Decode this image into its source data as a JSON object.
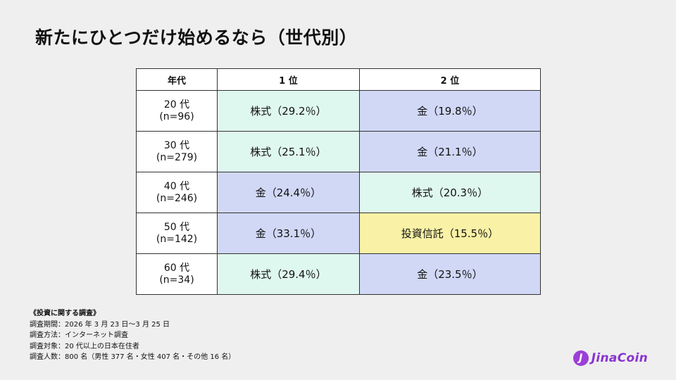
{
  "title": "新たにひとつだけ始めるなら（世代別）",
  "table": {
    "headers": [
      "年代",
      "1 位",
      "2 位"
    ],
    "rows": [
      {
        "age": "20 代",
        "n": "(n=96)",
        "first": "株式（29.2％）",
        "first_type": "stocks",
        "second": "金（19.8％）",
        "second_type": "gold"
      },
      {
        "age": "30 代",
        "n": "(n=279)",
        "first": "株式（25.1％）",
        "first_type": "stocks",
        "second": "金（21.1％）",
        "second_type": "gold"
      },
      {
        "age": "40 代",
        "n": "(n=246)",
        "first": "金（24.4％）",
        "first_type": "gold",
        "second": "株式（20.3％）",
        "second_type": "stocks"
      },
      {
        "age": "50 代",
        "n": "(n=142)",
        "first": "金（33.1％）",
        "first_type": "gold",
        "second": "投資信託（15.5％）",
        "second_type": "trust"
      },
      {
        "age": "60 代",
        "n": "(n=34)",
        "first": "株式（29.4％）",
        "first_type": "stocks",
        "second": "金（23.5％）",
        "second_type": "gold"
      }
    ]
  },
  "colors": {
    "stocks": "#dff8ef",
    "gold": "#d1d8f6",
    "trust": "#f8f1a6",
    "brand": "#8a34cf"
  },
  "notes": {
    "heading": "《投資に関する調査》",
    "lines": [
      "調査期間：2026 年 3 月 23 日〜3 月 25 日",
      "調査方法：インターネット調査",
      "調査対象：20 代以上の日本在住者",
      "調査人数：800 名（男性 377 名・女性 407 名・その他 16 名）"
    ]
  },
  "logo": {
    "mark": "J",
    "text": "JinaCoin",
    "icon": "jinacoin-logo-icon"
  }
}
